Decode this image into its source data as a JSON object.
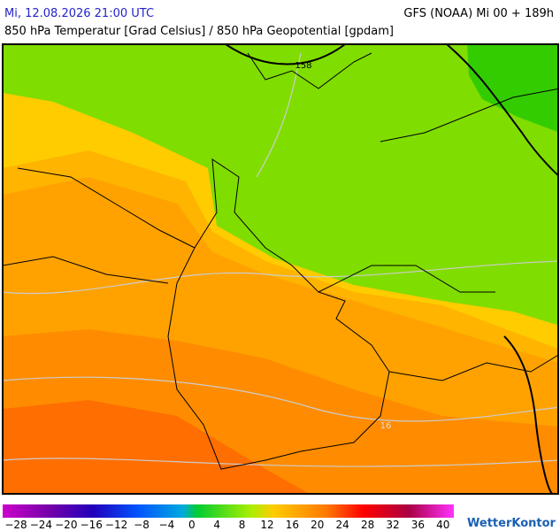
{
  "header": {
    "run_time": "Mi, 12.08.2026 21:00 UTC",
    "model": "GFS (NOAA) Mi 00 + 189h",
    "title": "850 hPa Temperatur [Grad Celsius] / 850 hPa Geopotential [gpdam]"
  },
  "map": {
    "contour_labels": [
      "158",
      "16"
    ]
  },
  "legend": {
    "labels": [
      "−28",
      "−24",
      "−20",
      "−16",
      "−12",
      "−8",
      "−4",
      "0",
      "4",
      "8",
      "12",
      "16",
      "20",
      "24",
      "28",
      "32",
      "36",
      "40"
    ]
  },
  "footer": {
    "logo": "WetterKontor"
  }
}
